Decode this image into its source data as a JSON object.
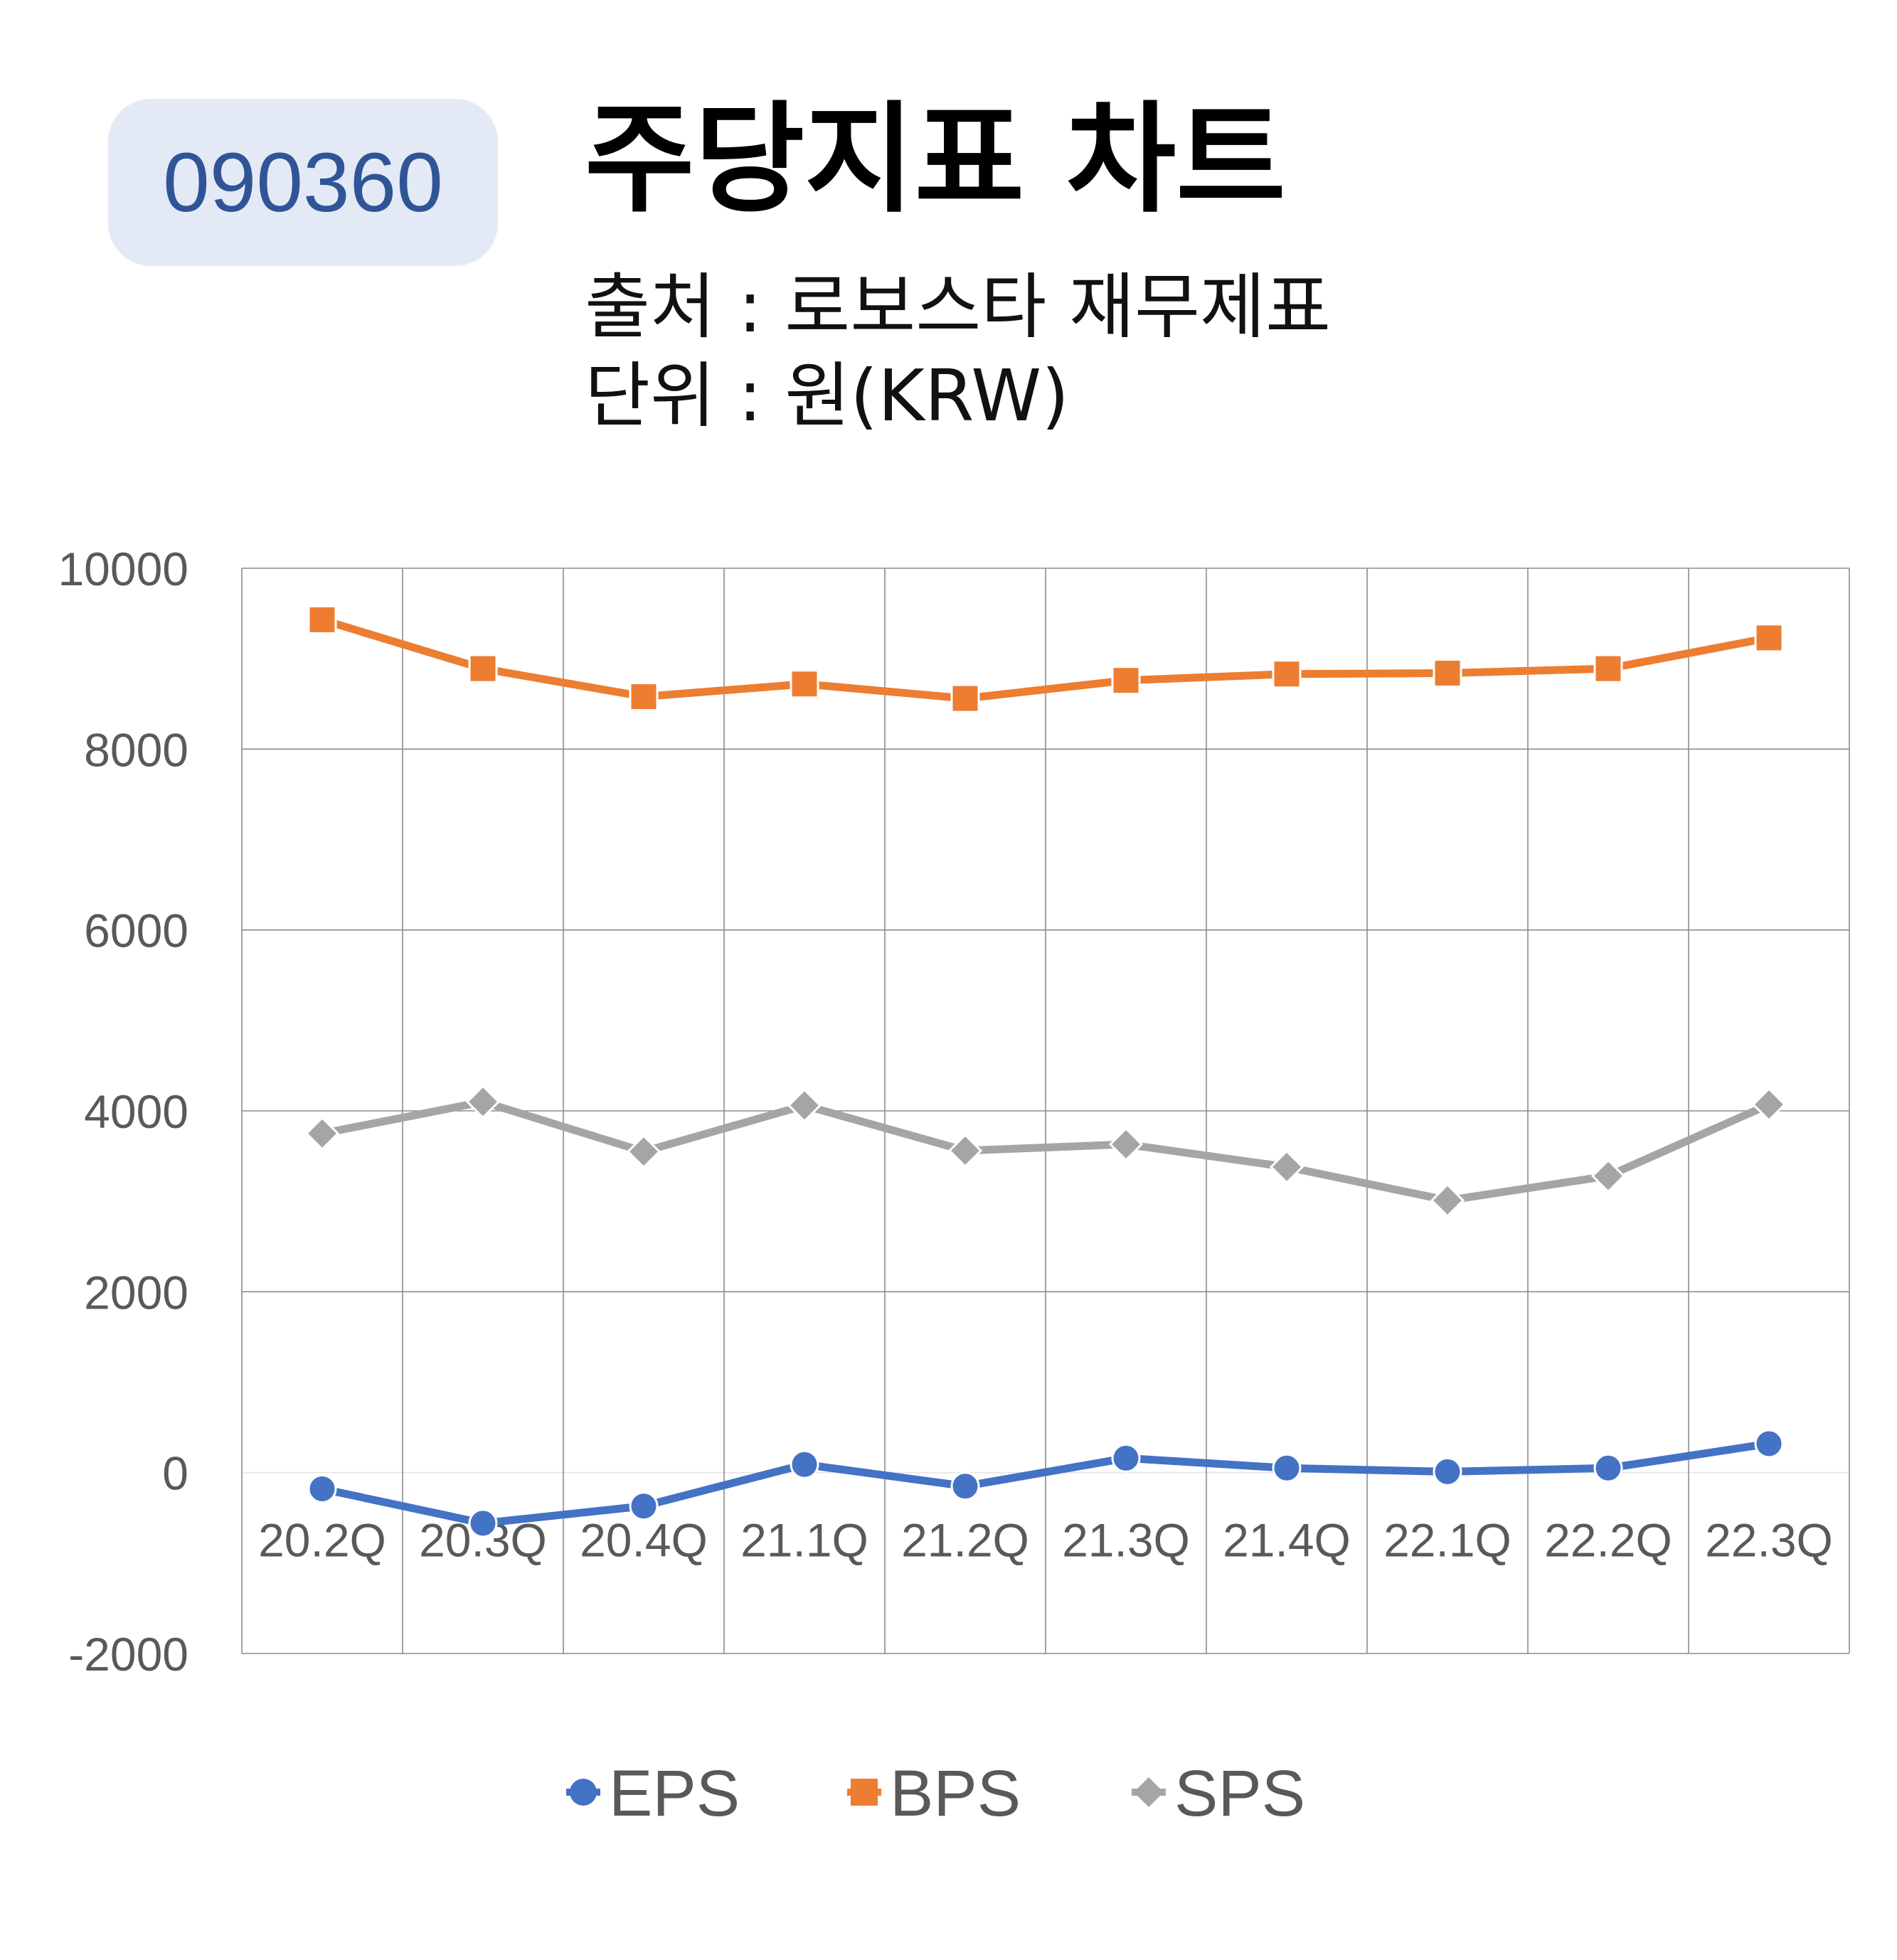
{
  "header": {
    "ticker": "090360",
    "title": "주당지표 차트",
    "source_line": "출처 : 로보스타 재무제표",
    "unit_line": "단위 : 원(KRW)"
  },
  "chart_data": {
    "type": "line",
    "categories": [
      "20.2Q",
      "20.3Q",
      "20.4Q",
      "21.1Q",
      "21.2Q",
      "21.3Q",
      "21.4Q",
      "22.1Q",
      "22.2Q",
      "22.3Q"
    ],
    "ylim": [
      -2000,
      10000
    ],
    "yticks": [
      -2000,
      0,
      2000,
      4000,
      6000,
      8000,
      10000
    ],
    "grid": true,
    "legend_position": "bottom",
    "series": [
      {
        "name": "EPS",
        "color": "#4472c4",
        "marker": "circle",
        "values": [
          -180,
          -560,
          -370,
          90,
          -150,
          160,
          50,
          10,
          50,
          320
        ]
      },
      {
        "name": "BPS",
        "color": "#ed7d31",
        "marker": "square",
        "values": [
          9430,
          8890,
          8580,
          8720,
          8560,
          8760,
          8830,
          8840,
          8890,
          9230
        ]
      },
      {
        "name": "SPS",
        "color": "#a5a5a5",
        "marker": "diamond",
        "values": [
          3750,
          4100,
          3550,
          4060,
          3560,
          3630,
          3380,
          3010,
          3280,
          4070
        ]
      }
    ]
  }
}
